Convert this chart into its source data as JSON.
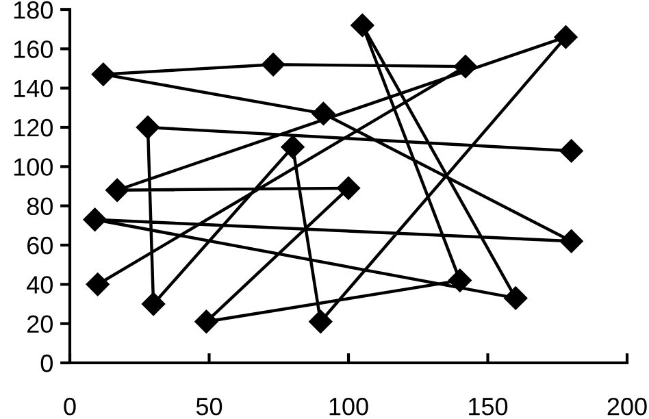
{
  "chart_data": {
    "type": "line",
    "series": [
      {
        "color": "#000000",
        "x": [
          10,
          142,
          73,
          12,
          91,
          180,
          9,
          160,
          105,
          140,
          49,
          100,
          17,
          178,
          90,
          80,
          30,
          28,
          180
        ],
        "values": [
          40,
          151,
          152,
          147,
          127,
          62,
          73,
          33,
          172,
          42,
          21,
          89,
          88,
          166,
          21,
          110,
          30,
          120,
          108
        ]
      }
    ],
    "xlim": [
      0,
      200
    ],
    "xticks": [
      0,
      50,
      100,
      150,
      200
    ],
    "ylim": [
      0,
      180
    ],
    "yticks": [
      0,
      20,
      40,
      60,
      80,
      100,
      120,
      140,
      160,
      180
    ],
    "marker": "diamond",
    "line_style": "solid",
    "grid": false,
    "legend": false
  }
}
